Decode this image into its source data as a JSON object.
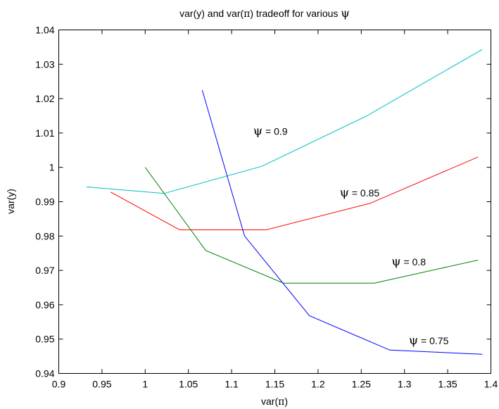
{
  "chart_data": {
    "type": "line",
    "title": {
      "prefix": "var(y) and var(",
      "greek_pi": "π",
      "middle": ") tradeoff for various ",
      "greek_psi": "ψ"
    },
    "xlabel": {
      "prefix": "var(",
      "greek": "π",
      "suffix": ")"
    },
    "ylabel": "var(y)",
    "xlim": [
      0.9,
      1.4
    ],
    "ylim": [
      0.94,
      1.04
    ],
    "xticks": [
      {
        "v": 0.9,
        "label": "0.9"
      },
      {
        "v": 0.95,
        "label": "0.95"
      },
      {
        "v": 1.0,
        "label": "1"
      },
      {
        "v": 1.05,
        "label": "1.05"
      },
      {
        "v": 1.1,
        "label": "1.1"
      },
      {
        "v": 1.15,
        "label": "1.15"
      },
      {
        "v": 1.2,
        "label": "1.2"
      },
      {
        "v": 1.25,
        "label": "1.25"
      },
      {
        "v": 1.3,
        "label": "1.3"
      },
      {
        "v": 1.35,
        "label": "1.35"
      },
      {
        "v": 1.4,
        "label": "1.4"
      }
    ],
    "yticks": [
      {
        "v": 0.94,
        "label": "0.94"
      },
      {
        "v": 0.95,
        "label": "0.95"
      },
      {
        "v": 0.96,
        "label": "0.96"
      },
      {
        "v": 0.97,
        "label": "0.97"
      },
      {
        "v": 0.98,
        "label": "0.98"
      },
      {
        "v": 0.99,
        "label": "0.99"
      },
      {
        "v": 1.0,
        "label": "1"
      },
      {
        "v": 1.01,
        "label": "1.01"
      },
      {
        "v": 1.02,
        "label": "1.02"
      },
      {
        "v": 1.03,
        "label": "1.03"
      },
      {
        "v": 1.04,
        "label": "1.04"
      }
    ],
    "grid": false,
    "legend": "none",
    "series": [
      {
        "key": "psi-0.9",
        "color": "#00bfbf",
        "points": [
          [
            0.932,
            0.9943
          ],
          [
            1.022,
            0.9924
          ],
          [
            1.135,
            1.0003
          ],
          [
            1.255,
            1.0148
          ],
          [
            1.39,
            1.0343
          ]
        ],
        "annotation": {
          "greek": "ψ",
          "text": " = 0.9",
          "x": 1.125,
          "y": 1.0095
        }
      },
      {
        "key": "psi-0.85",
        "color": "#ff0000",
        "points": [
          [
            0.96,
            0.9928
          ],
          [
            1.04,
            0.9818
          ],
          [
            1.14,
            0.9818
          ],
          [
            1.26,
            0.9895
          ],
          [
            1.385,
            1.003
          ]
        ],
        "annotation": {
          "greek": "ψ",
          "text": " = 0.85",
          "x": 1.225,
          "y": 0.9915
        }
      },
      {
        "key": "psi-0.8",
        "color": "#008000",
        "points": [
          [
            1.0,
            1.0
          ],
          [
            1.07,
            0.9758
          ],
          [
            1.16,
            0.9663
          ],
          [
            1.265,
            0.9663
          ],
          [
            1.385,
            0.973
          ]
        ],
        "annotation": {
          "greek": "ψ",
          "text": " = 0.8",
          "x": 1.285,
          "y": 0.9715
        }
      },
      {
        "key": "psi-0.75",
        "color": "#0000ff",
        "points": [
          [
            1.066,
            1.0225
          ],
          [
            1.115,
            0.98
          ],
          [
            1.19,
            0.9568
          ],
          [
            1.283,
            0.9468
          ],
          [
            1.39,
            0.9456
          ]
        ],
        "annotation": {
          "greek": "ψ",
          "text": " = 0.75",
          "x": 1.305,
          "y": 0.9485
        }
      }
    ]
  }
}
